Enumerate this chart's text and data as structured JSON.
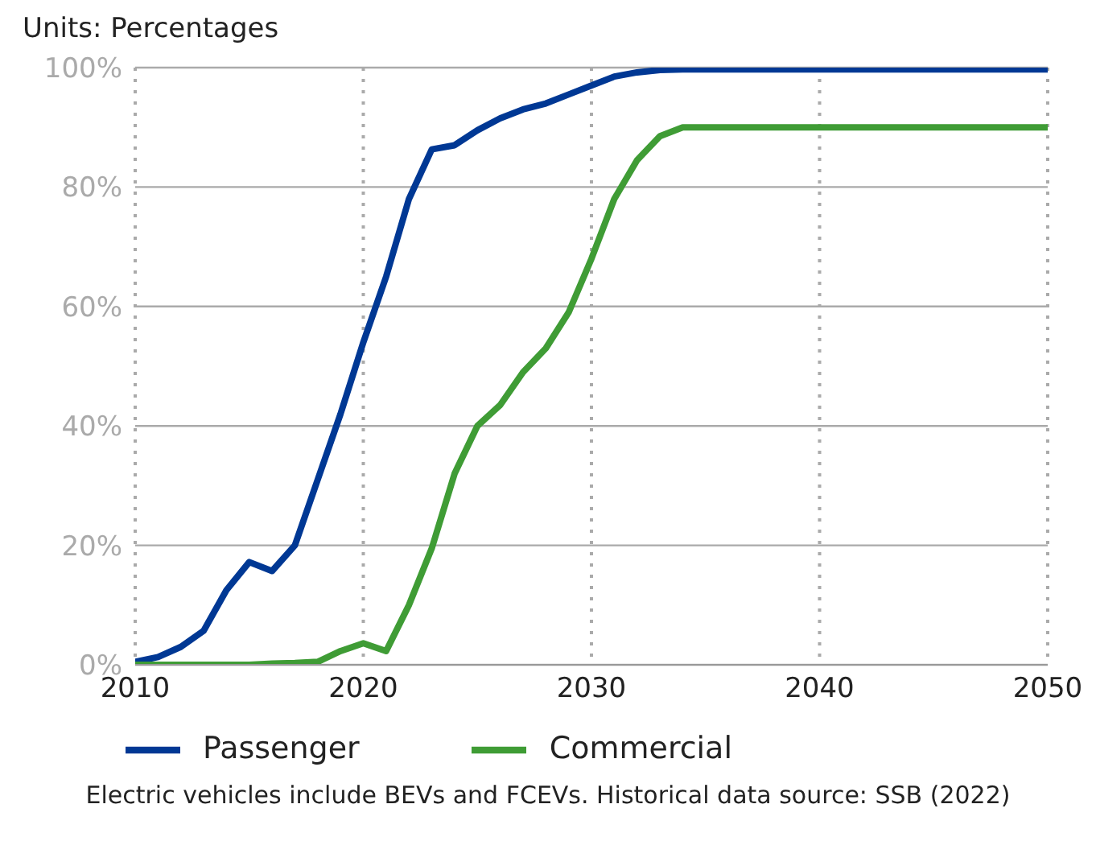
{
  "chart_data": {
    "type": "line",
    "title": "Units: Percentages",
    "x": [
      2010,
      2011,
      2012,
      2013,
      2014,
      2015,
      2016,
      2017,
      2018,
      2019,
      2020,
      2021,
      2022,
      2023,
      2024,
      2025,
      2026,
      2027,
      2028,
      2029,
      2030,
      2031,
      2032,
      2033,
      2034,
      2050
    ],
    "series": [
      {
        "name": "Passenger",
        "color": "#003894",
        "values": [
          0.5,
          1.3,
          3,
          5.7,
          12.5,
          17.2,
          15.7,
          20,
          31,
          42,
          54,
          65,
          78,
          86.3,
          87,
          89.5,
          91.5,
          93,
          94,
          95.5,
          97,
          98.5,
          99.2,
          99.6,
          99.7,
          99.7
        ]
      },
      {
        "name": "Commercial",
        "color": "#3f9c35",
        "values": [
          0,
          0,
          0,
          0,
          0,
          0,
          0.2,
          0.3,
          0.5,
          2.3,
          3.6,
          2.3,
          10,
          19.5,
          32,
          40,
          43.5,
          49,
          53,
          59,
          68,
          78,
          84.5,
          88.5,
          90,
          90
        ]
      }
    ],
    "xlim": [
      2010,
      2050
    ],
    "xticks": [
      2010,
      2020,
      2030,
      2040,
      2050
    ],
    "ylim": [
      0,
      100
    ],
    "yticks": [
      {
        "value": 0,
        "label": "0%"
      },
      {
        "value": 20,
        "label": "20%"
      },
      {
        "value": 40,
        "label": "40%"
      },
      {
        "value": 60,
        "label": "60%"
      },
      {
        "value": 80,
        "label": "80%"
      },
      {
        "value": 100,
        "label": "100%"
      }
    ],
    "grid": true,
    "legend": "bottom",
    "marker": "none",
    "line_style": "solid",
    "annotations": [
      "Electric vehicles include BEVs and FCEVs. Historical data source: SSB (2022)"
    ]
  }
}
